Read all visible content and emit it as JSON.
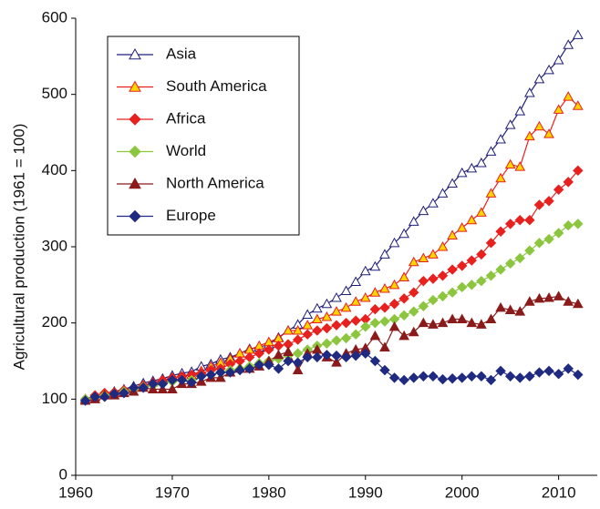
{
  "chart_data": {
    "type": "line",
    "y_label": "Agricultural production (1961 = 100)",
    "xlim": [
      1960,
      2014
    ],
    "ylim": [
      0,
      600
    ],
    "xticks": [
      1960,
      1970,
      1980,
      1990,
      2000,
      2010
    ],
    "yticks": [
      0,
      100,
      200,
      300,
      400,
      500,
      600
    ],
    "x": [
      1961,
      1962,
      1963,
      1964,
      1965,
      1966,
      1967,
      1968,
      1969,
      1970,
      1971,
      1972,
      1973,
      1974,
      1975,
      1976,
      1977,
      1978,
      1979,
      1980,
      1981,
      1982,
      1983,
      1984,
      1985,
      1986,
      1987,
      1988,
      1989,
      1990,
      1991,
      1992,
      1993,
      1994,
      1995,
      1996,
      1997,
      1998,
      1999,
      2000,
      2001,
      2002,
      2003,
      2004,
      2005,
      2006,
      2007,
      2008,
      2009,
      2010,
      2011,
      2012
    ],
    "series": [
      {
        "name": "Asia",
        "color": "#1f1f7a",
        "marker": "triangle",
        "fill": "#ffffff",
        "values": [
          100,
          103,
          107,
          110,
          113,
          117,
          121,
          124,
          127,
          131,
          134,
          136,
          143,
          146,
          152,
          155,
          160,
          166,
          168,
          172,
          181,
          190,
          198,
          211,
          219,
          225,
          233,
          242,
          254,
          268,
          274,
          290,
          305,
          317,
          333,
          347,
          357,
          370,
          383,
          397,
          403,
          410,
          425,
          441,
          460,
          478,
          502,
          520,
          532,
          545,
          565,
          578
        ]
      },
      {
        "name": "South America",
        "color": "#e8201e",
        "marker": "triangle",
        "fill": "#ffd400",
        "values": [
          100,
          104,
          107,
          108,
          112,
          115,
          118,
          122,
          125,
          128,
          130,
          132,
          137,
          143,
          148,
          153,
          160,
          165,
          170,
          175,
          180,
          190,
          190,
          197,
          205,
          208,
          215,
          220,
          228,
          233,
          240,
          245,
          250,
          260,
          280,
          285,
          290,
          300,
          315,
          325,
          335,
          345,
          370,
          390,
          408,
          405,
          445,
          458,
          448,
          480,
          497,
          485
        ]
      },
      {
        "name": "Africa",
        "color": "#e8201e",
        "marker": "diamond",
        "fill": "#e8201e",
        "values": [
          100,
          105,
          108,
          109,
          112,
          114,
          118,
          121,
          125,
          128,
          130,
          132,
          134,
          138,
          140,
          146,
          150,
          155,
          160,
          165,
          170,
          172,
          178,
          185,
          190,
          193,
          197,
          200,
          203,
          205,
          218,
          220,
          225,
          232,
          240,
          255,
          258,
          262,
          270,
          275,
          282,
          290,
          305,
          320,
          330,
          335,
          335,
          355,
          360,
          375,
          385,
          400
        ]
      },
      {
        "name": "World",
        "color": "#8cc63f",
        "marker": "diamond",
        "fill": "#8cc63f",
        "values": [
          100,
          102,
          105,
          107,
          110,
          113,
          116,
          118,
          120,
          123,
          125,
          125,
          130,
          132,
          135,
          138,
          140,
          143,
          147,
          150,
          153,
          157,
          160,
          165,
          170,
          173,
          177,
          180,
          185,
          195,
          200,
          202,
          205,
          210,
          215,
          222,
          230,
          235,
          240,
          247,
          250,
          255,
          262,
          270,
          278,
          285,
          295,
          305,
          310,
          318,
          328,
          330
        ]
      },
      {
        "name": "North America",
        "color": "#8b1a1a",
        "marker": "triangle",
        "fill": "#8b1a1a",
        "values": [
          98,
          100,
          105,
          105,
          108,
          110,
          115,
          113,
          113,
          113,
          120,
          120,
          123,
          128,
          128,
          135,
          140,
          140,
          143,
          150,
          158,
          162,
          138,
          160,
          165,
          155,
          148,
          160,
          165,
          167,
          183,
          168,
          195,
          183,
          188,
          200,
          198,
          200,
          205,
          205,
          200,
          198,
          205,
          220,
          217,
          215,
          228,
          232,
          233,
          235,
          228,
          225
        ]
      },
      {
        "name": "Europe",
        "color": "#1f2a80",
        "marker": "diamond",
        "fill": "#1f2a80",
        "values": [
          98,
          103,
          103,
          107,
          108,
          115,
          115,
          120,
          120,
          125,
          125,
          122,
          130,
          132,
          135,
          135,
          138,
          140,
          145,
          145,
          140,
          150,
          148,
          155,
          155,
          158,
          157,
          155,
          157,
          160,
          150,
          138,
          128,
          125,
          128,
          130,
          130,
          126,
          127,
          128,
          130,
          130,
          125,
          137,
          130,
          128,
          130,
          135,
          137,
          133,
          140,
          132
        ]
      }
    ]
  }
}
